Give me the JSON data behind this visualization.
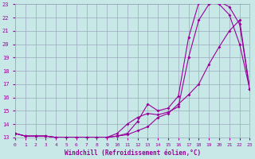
{
  "xlabel": "Windchill (Refroidissement éolien,°C)",
  "xlim": [
    0,
    23
  ],
  "ylim": [
    13,
    23
  ],
  "yticks": [
    13,
    14,
    15,
    16,
    17,
    18,
    19,
    20,
    21,
    22,
    23
  ],
  "xticks": [
    0,
    1,
    2,
    3,
    4,
    5,
    6,
    7,
    8,
    9,
    10,
    11,
    12,
    13,
    14,
    15,
    16,
    17,
    18,
    19,
    20,
    21,
    22,
    23
  ],
  "background_color": "#c8e8e8",
  "grid_color": "#99aabb",
  "line_color": "#990099",
  "line1_x": [
    0,
    1,
    2,
    3,
    4,
    5,
    6,
    7,
    8,
    9,
    10,
    11,
    12,
    13,
    14,
    15,
    16,
    17,
    18,
    19,
    20,
    21,
    22,
    23
  ],
  "line1_y": [
    13.3,
    13.1,
    13.1,
    13.1,
    13.0,
    13.0,
    13.0,
    13.0,
    13.0,
    13.0,
    13.1,
    13.3,
    14.2,
    15.5,
    15.0,
    15.2,
    16.1,
    20.5,
    23.1,
    23.2,
    23.0,
    22.2,
    20.0,
    16.6
  ],
  "line2_x": [
    0,
    1,
    2,
    3,
    4,
    5,
    6,
    7,
    8,
    9,
    10,
    11,
    12,
    13,
    14,
    15,
    16,
    17,
    18,
    19,
    20,
    21,
    22,
    23
  ],
  "line2_y": [
    13.3,
    13.1,
    13.1,
    13.1,
    13.0,
    13.0,
    13.0,
    13.0,
    13.0,
    13.0,
    13.3,
    14.0,
    14.5,
    14.8,
    14.7,
    14.9,
    15.3,
    19.0,
    21.8,
    23.0,
    23.2,
    22.8,
    21.5,
    16.6
  ],
  "line3_x": [
    0,
    1,
    2,
    3,
    4,
    5,
    6,
    7,
    8,
    9,
    10,
    11,
    12,
    13,
    14,
    15,
    16,
    17,
    18,
    19,
    20,
    21,
    22,
    23
  ],
  "line3_y": [
    13.3,
    13.1,
    13.1,
    13.1,
    13.0,
    13.0,
    13.0,
    13.0,
    13.0,
    13.0,
    13.1,
    13.2,
    13.5,
    13.8,
    14.5,
    14.8,
    15.5,
    16.2,
    17.0,
    18.5,
    19.8,
    21.0,
    21.8,
    16.6
  ]
}
